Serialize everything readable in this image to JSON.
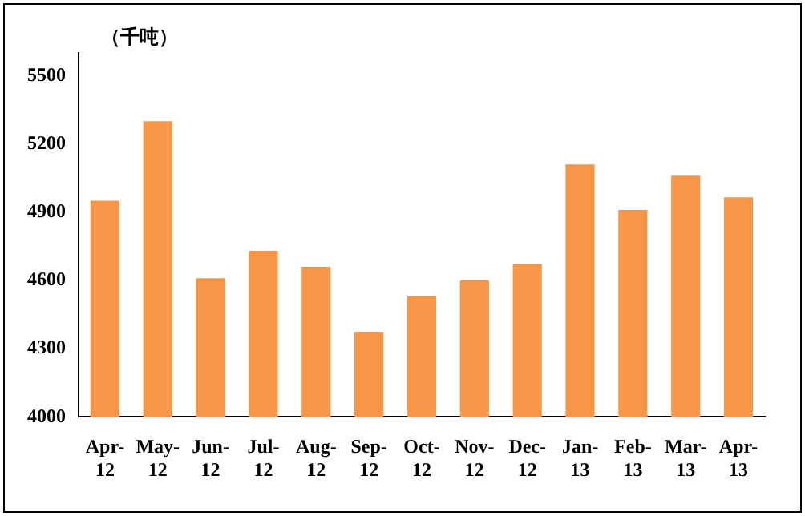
{
  "chart_data": {
    "type": "bar",
    "ylabel": "（千吨）",
    "categories": [
      "Apr-12",
      "May-12",
      "Jun-12",
      "Jul-12",
      "Aug-12",
      "Sep-12",
      "Oct-12",
      "Nov-12",
      "Dec-12",
      "Jan-13",
      "Feb-13",
      "Mar-13",
      "Apr-13"
    ],
    "values": [
      4950,
      5300,
      4610,
      4730,
      4660,
      4375,
      4530,
      4600,
      4670,
      5110,
      4910,
      5060,
      4965
    ],
    "color": "#f79646",
    "ylim": [
      4000,
      5600
    ],
    "yticks": [
      4000,
      4300,
      4600,
      4900,
      5200,
      5500
    ],
    "grid": false,
    "legend": false
  }
}
